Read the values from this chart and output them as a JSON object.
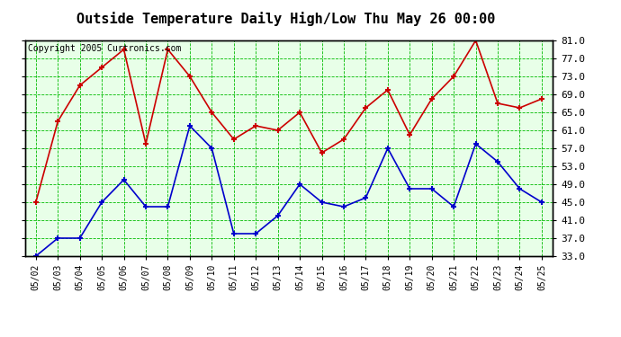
{
  "title": "Outside Temperature Daily High/Low Thu May 26 00:00",
  "copyright": "Copyright 2005 Curtronics.com",
  "dates": [
    "05/02",
    "05/03",
    "05/04",
    "05/05",
    "05/06",
    "05/07",
    "05/08",
    "05/09",
    "05/10",
    "05/11",
    "05/12",
    "05/13",
    "05/14",
    "05/15",
    "05/16",
    "05/17",
    "05/18",
    "05/19",
    "05/20",
    "05/21",
    "05/22",
    "05/23",
    "05/24",
    "05/25"
  ],
  "high_temps": [
    45,
    63,
    71,
    75,
    79,
    58,
    79,
    73,
    65,
    59,
    62,
    61,
    65,
    56,
    59,
    66,
    70,
    60,
    68,
    73,
    81,
    67,
    66,
    68
  ],
  "low_temps": [
    33,
    37,
    37,
    45,
    50,
    44,
    44,
    62,
    57,
    38,
    38,
    42,
    49,
    45,
    44,
    46,
    57,
    48,
    48,
    44,
    58,
    54,
    48,
    45
  ],
  "ylim_min": 33.0,
  "ylim_max": 81.0,
  "yticks": [
    33.0,
    37.0,
    41.0,
    45.0,
    49.0,
    53.0,
    57.0,
    61.0,
    65.0,
    69.0,
    73.0,
    77.0,
    81.0
  ],
  "high_color": "#cc0000",
  "low_color": "#0000cc",
  "bg_color": "#ffffff",
  "plot_bg_color": "#e8ffe8",
  "grid_color": "#00bb00",
  "title_fontsize": 11,
  "copyright_fontsize": 7
}
